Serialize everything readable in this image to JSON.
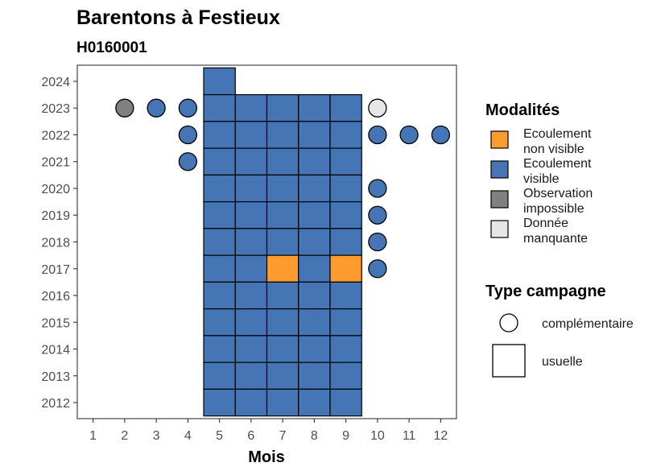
{
  "chart_data": {
    "type": "heatmap",
    "title": "Barentons à Festieux",
    "subtitle": "H0160001",
    "xlabel": "Mois",
    "ylabel": "",
    "x_ticks": [
      1,
      2,
      3,
      4,
      5,
      6,
      7,
      8,
      9,
      10,
      11,
      12
    ],
    "y_ticks": [
      2012,
      2013,
      2014,
      2015,
      2016,
      2017,
      2018,
      2019,
      2020,
      2021,
      2022,
      2023,
      2024
    ],
    "xlim": [
      0.5,
      12.5
    ],
    "ylim": [
      2011.4,
      2024.6
    ],
    "grid": false,
    "legend_position": "right",
    "colors": {
      "Ecoulement non visible": "#FE9A2E",
      "Ecoulement visible": "#4575B4",
      "Observation impossible": "#808080",
      "Donnée manquante": "#E6E6E6"
    },
    "legend": {
      "modalites_title": "Modalités",
      "modalites": [
        {
          "key": "Ecoulement non visible",
          "lines": [
            "Ecoulement",
            "non visible"
          ]
        },
        {
          "key": "Ecoulement visible",
          "lines": [
            "Ecoulement",
            "visible"
          ]
        },
        {
          "key": "Observation impossible",
          "lines": [
            "Observation",
            "impossible"
          ]
        },
        {
          "key": "Donnée manquante",
          "lines": [
            "Donnée",
            "manquante"
          ]
        }
      ],
      "campagne_title": "Type campagne",
      "campagnes": [
        {
          "shape": "circle",
          "label": "complémentaire"
        },
        {
          "shape": "square",
          "label": "usuelle"
        }
      ]
    },
    "observations": [
      {
        "year": 2024,
        "month": 5,
        "campagne": "usuelle",
        "modalite": "Ecoulement visible"
      },
      {
        "year": 2023,
        "month": 2,
        "campagne": "complémentaire",
        "modalite": "Observation impossible"
      },
      {
        "year": 2023,
        "month": 3,
        "campagne": "complémentaire",
        "modalite": "Ecoulement visible"
      },
      {
        "year": 2023,
        "month": 4,
        "campagne": "complémentaire",
        "modalite": "Ecoulement visible"
      },
      {
        "year": 2023,
        "month": 5,
        "campagne": "usuelle",
        "modalite": "Ecoulement visible"
      },
      {
        "year": 2023,
        "month": 6,
        "campagne": "usuelle",
        "modalite": "Ecoulement visible"
      },
      {
        "year": 2023,
        "month": 7,
        "campagne": "usuelle",
        "modalite": "Ecoulement visible"
      },
      {
        "year": 2023,
        "month": 8,
        "campagne": "usuelle",
        "modalite": "Ecoulement visible"
      },
      {
        "year": 2023,
        "month": 9,
        "campagne": "usuelle",
        "modalite": "Ecoulement visible"
      },
      {
        "year": 2023,
        "month": 10,
        "campagne": "complémentaire",
        "modalite": "Donnée manquante"
      },
      {
        "year": 2022,
        "month": 4,
        "campagne": "complémentaire",
        "modalite": "Ecoulement visible"
      },
      {
        "year": 2022,
        "month": 5,
        "campagne": "usuelle",
        "modalite": "Ecoulement visible"
      },
      {
        "year": 2022,
        "month": 6,
        "campagne": "usuelle",
        "modalite": "Ecoulement visible"
      },
      {
        "year": 2022,
        "month": 7,
        "campagne": "usuelle",
        "modalite": "Ecoulement visible"
      },
      {
        "year": 2022,
        "month": 8,
        "campagne": "usuelle",
        "modalite": "Ecoulement visible"
      },
      {
        "year": 2022,
        "month": 9,
        "campagne": "usuelle",
        "modalite": "Ecoulement visible"
      },
      {
        "year": 2022,
        "month": 10,
        "campagne": "complémentaire",
        "modalite": "Ecoulement visible"
      },
      {
        "year": 2022,
        "month": 11,
        "campagne": "complémentaire",
        "modalite": "Ecoulement visible"
      },
      {
        "year": 2022,
        "month": 12,
        "campagne": "complémentaire",
        "modalite": "Ecoulement visible"
      },
      {
        "year": 2021,
        "month": 4,
        "campagne": "complémentaire",
        "modalite": "Ecoulement visible"
      },
      {
        "year": 2021,
        "month": 5,
        "campagne": "usuelle",
        "modalite": "Ecoulement visible"
      },
      {
        "year": 2021,
        "month": 6,
        "campagne": "usuelle",
        "modalite": "Ecoulement visible"
      },
      {
        "year": 2021,
        "month": 7,
        "campagne": "usuelle",
        "modalite": "Ecoulement visible"
      },
      {
        "year": 2021,
        "month": 8,
        "campagne": "usuelle",
        "modalite": "Ecoulement visible"
      },
      {
        "year": 2021,
        "month": 9,
        "campagne": "usuelle",
        "modalite": "Ecoulement visible"
      },
      {
        "year": 2020,
        "month": 5,
        "campagne": "usuelle",
        "modalite": "Ecoulement visible"
      },
      {
        "year": 2020,
        "month": 6,
        "campagne": "usuelle",
        "modalite": "Ecoulement visible"
      },
      {
        "year": 2020,
        "month": 7,
        "campagne": "usuelle",
        "modalite": "Ecoulement visible"
      },
      {
        "year": 2020,
        "month": 8,
        "campagne": "usuelle",
        "modalite": "Ecoulement visible"
      },
      {
        "year": 2020,
        "month": 9,
        "campagne": "usuelle",
        "modalite": "Ecoulement visible"
      },
      {
        "year": 2020,
        "month": 10,
        "campagne": "complémentaire",
        "modalite": "Ecoulement visible"
      },
      {
        "year": 2019,
        "month": 5,
        "campagne": "usuelle",
        "modalite": "Ecoulement visible"
      },
      {
        "year": 2019,
        "month": 6,
        "campagne": "usuelle",
        "modalite": "Ecoulement visible"
      },
      {
        "year": 2019,
        "month": 7,
        "campagne": "usuelle",
        "modalite": "Ecoulement visible"
      },
      {
        "year": 2019,
        "month": 8,
        "campagne": "usuelle",
        "modalite": "Ecoulement visible"
      },
      {
        "year": 2019,
        "month": 9,
        "campagne": "usuelle",
        "modalite": "Ecoulement visible"
      },
      {
        "year": 2019,
        "month": 10,
        "campagne": "complémentaire",
        "modalite": "Ecoulement visible"
      },
      {
        "year": 2018,
        "month": 5,
        "campagne": "usuelle",
        "modalite": "Ecoulement visible"
      },
      {
        "year": 2018,
        "month": 6,
        "campagne": "usuelle",
        "modalite": "Ecoulement visible"
      },
      {
        "year": 2018,
        "month": 7,
        "campagne": "usuelle",
        "modalite": "Ecoulement visible"
      },
      {
        "year": 2018,
        "month": 8,
        "campagne": "usuelle",
        "modalite": "Ecoulement visible"
      },
      {
        "year": 2018,
        "month": 9,
        "campagne": "usuelle",
        "modalite": "Ecoulement visible"
      },
      {
        "year": 2018,
        "month": 10,
        "campagne": "complémentaire",
        "modalite": "Ecoulement visible"
      },
      {
        "year": 2017,
        "month": 5,
        "campagne": "usuelle",
        "modalite": "Ecoulement visible"
      },
      {
        "year": 2017,
        "month": 6,
        "campagne": "usuelle",
        "modalite": "Ecoulement visible"
      },
      {
        "year": 2017,
        "month": 7,
        "campagne": "usuelle",
        "modalite": "Ecoulement non visible"
      },
      {
        "year": 2017,
        "month": 8,
        "campagne": "usuelle",
        "modalite": "Ecoulement visible"
      },
      {
        "year": 2017,
        "month": 9,
        "campagne": "usuelle",
        "modalite": "Ecoulement non visible"
      },
      {
        "year": 2017,
        "month": 10,
        "campagne": "complémentaire",
        "modalite": "Ecoulement visible"
      },
      {
        "year": 2016,
        "month": 5,
        "campagne": "usuelle",
        "modalite": "Ecoulement visible"
      },
      {
        "year": 2016,
        "month": 6,
        "campagne": "usuelle",
        "modalite": "Ecoulement visible"
      },
      {
        "year": 2016,
        "month": 7,
        "campagne": "usuelle",
        "modalite": "Ecoulement visible"
      },
      {
        "year": 2016,
        "month": 8,
        "campagne": "usuelle",
        "modalite": "Ecoulement visible"
      },
      {
        "year": 2016,
        "month": 9,
        "campagne": "usuelle",
        "modalite": "Ecoulement visible"
      },
      {
        "year": 2015,
        "month": 5,
        "campagne": "usuelle",
        "modalite": "Ecoulement visible"
      },
      {
        "year": 2015,
        "month": 6,
        "campagne": "usuelle",
        "modalite": "Ecoulement visible"
      },
      {
        "year": 2015,
        "month": 7,
        "campagne": "usuelle",
        "modalite": "Ecoulement visible"
      },
      {
        "year": 2015,
        "month": 8,
        "campagne": "usuelle",
        "modalite": "Ecoulement visible"
      },
      {
        "year": 2015,
        "month": 9,
        "campagne": "usuelle",
        "modalite": "Ecoulement visible"
      },
      {
        "year": 2014,
        "month": 5,
        "campagne": "usuelle",
        "modalite": "Ecoulement visible"
      },
      {
        "year": 2014,
        "month": 6,
        "campagne": "usuelle",
        "modalite": "Ecoulement visible"
      },
      {
        "year": 2014,
        "month": 7,
        "campagne": "usuelle",
        "modalite": "Ecoulement visible"
      },
      {
        "year": 2014,
        "month": 8,
        "campagne": "usuelle",
        "modalite": "Ecoulement visible"
      },
      {
        "year": 2014,
        "month": 9,
        "campagne": "usuelle",
        "modalite": "Ecoulement visible"
      },
      {
        "year": 2013,
        "month": 5,
        "campagne": "usuelle",
        "modalite": "Ecoulement visible"
      },
      {
        "year": 2013,
        "month": 6,
        "campagne": "usuelle",
        "modalite": "Ecoulement visible"
      },
      {
        "year": 2013,
        "month": 7,
        "campagne": "usuelle",
        "modalite": "Ecoulement visible"
      },
      {
        "year": 2013,
        "month": 8,
        "campagne": "usuelle",
        "modalite": "Ecoulement visible"
      },
      {
        "year": 2013,
        "month": 9,
        "campagne": "usuelle",
        "modalite": "Ecoulement visible"
      },
      {
        "year": 2012,
        "month": 5,
        "campagne": "usuelle",
        "modalite": "Ecoulement visible"
      },
      {
        "year": 2012,
        "month": 6,
        "campagne": "usuelle",
        "modalite": "Ecoulement visible"
      },
      {
        "year": 2012,
        "month": 7,
        "campagne": "usuelle",
        "modalite": "Ecoulement visible"
      },
      {
        "year": 2012,
        "month": 8,
        "campagne": "usuelle",
        "modalite": "Ecoulement visible"
      },
      {
        "year": 2012,
        "month": 9,
        "campagne": "usuelle",
        "modalite": "Ecoulement visible"
      }
    ]
  }
}
